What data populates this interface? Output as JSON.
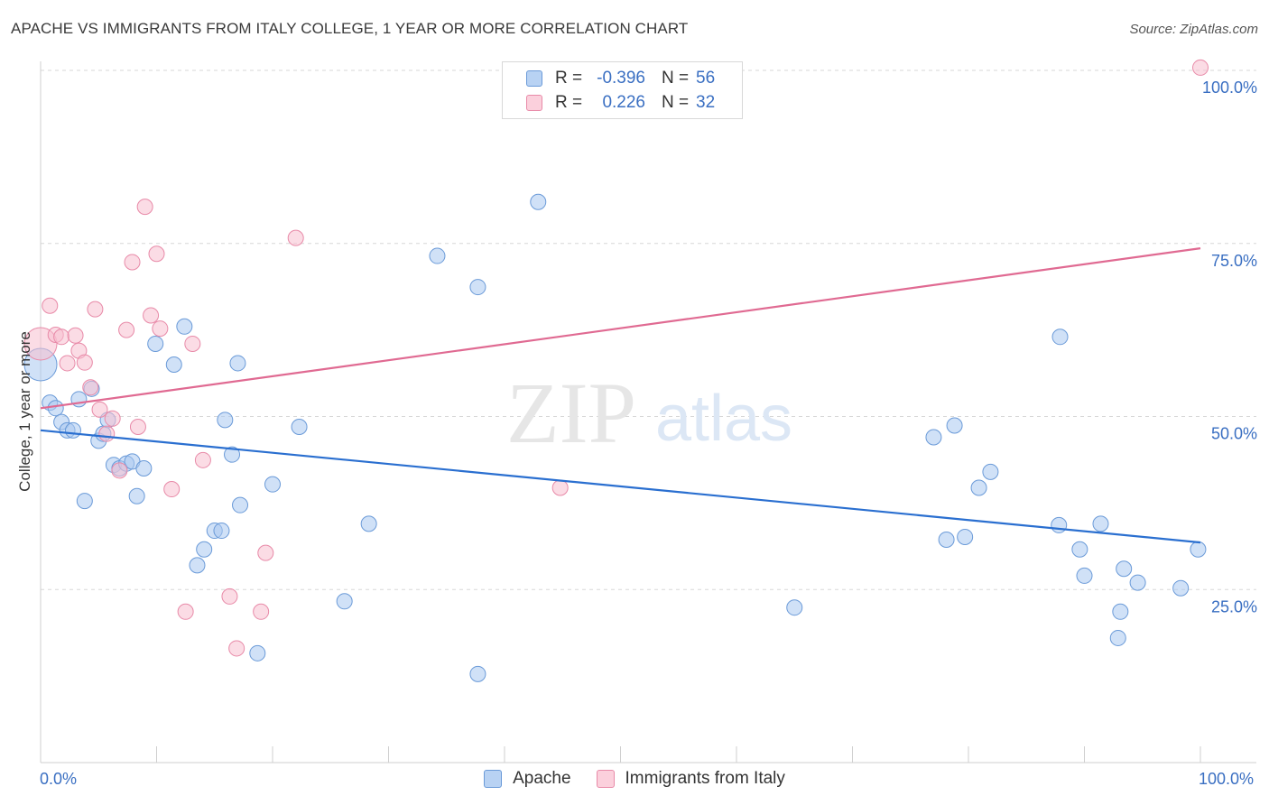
{
  "title": "APACHE VS IMMIGRANTS FROM ITALY COLLEGE, 1 YEAR OR MORE CORRELATION CHART",
  "source": "Source: ZipAtlas.com",
  "watermark": {
    "zip": "ZIP",
    "atlas": "atlas"
  },
  "legend_top": [
    {
      "r_label": "R =",
      "r_value": "-0.396",
      "n_label": "N =",
      "n_value": "56"
    },
    {
      "r_label": "R =",
      "r_value": "0.226",
      "n_label": "N =",
      "n_value": "32"
    }
  ],
  "colors": {
    "apache_fill": "#a9c8f0",
    "apache_stroke": "#6a9ad8",
    "apache_line": "#2a6fd0",
    "italy_fill": "#f7bfd0",
    "italy_stroke": "#e88aa8",
    "italy_line": "#e06a92",
    "axis_text": "#3a6fc2",
    "grid": "#d7d7d7"
  },
  "chart_data": {
    "type": "scatter",
    "title": "APACHE VS IMMIGRANTS FROM ITALY COLLEGE, 1 YEAR OR MORE CORRELATION CHART",
    "xlabel": "",
    "ylabel": "College, 1 year or more",
    "xlim": [
      0,
      100
    ],
    "ylim": [
      0,
      100
    ],
    "x_tick_labels": [
      "0.0%",
      "100.0%"
    ],
    "y_ticks": [
      25,
      50,
      75,
      100
    ],
    "y_tick_labels": [
      "25.0%",
      "50.0%",
      "75.0%",
      "100.0%"
    ],
    "legend": [
      "Apache",
      "Immigrants from Italy"
    ],
    "series": [
      {
        "name": "Apache",
        "r": -0.396,
        "n": 56,
        "trend": {
          "x": [
            0,
            100
          ],
          "y": [
            48.0,
            31.8
          ]
        },
        "points": [
          {
            "x": 0.0,
            "y": 57.5,
            "big": true
          },
          {
            "x": 0.8,
            "y": 52.0
          },
          {
            "x": 1.3,
            "y": 51.2
          },
          {
            "x": 1.8,
            "y": 49.2
          },
          {
            "x": 2.3,
            "y": 48.0
          },
          {
            "x": 2.8,
            "y": 48.0
          },
          {
            "x": 3.3,
            "y": 52.5
          },
          {
            "x": 4.4,
            "y": 54.0
          },
          {
            "x": 3.8,
            "y": 37.8
          },
          {
            "x": 5.0,
            "y": 46.5
          },
          {
            "x": 5.4,
            "y": 47.5
          },
          {
            "x": 5.8,
            "y": 49.5
          },
          {
            "x": 6.3,
            "y": 43.0
          },
          {
            "x": 6.8,
            "y": 42.5
          },
          {
            "x": 7.4,
            "y": 43.2
          },
          {
            "x": 7.9,
            "y": 43.5
          },
          {
            "x": 8.3,
            "y": 38.5
          },
          {
            "x": 8.9,
            "y": 42.5
          },
          {
            "x": 9.9,
            "y": 60.5
          },
          {
            "x": 11.5,
            "y": 57.5
          },
          {
            "x": 12.4,
            "y": 63.0
          },
          {
            "x": 13.5,
            "y": 28.5
          },
          {
            "x": 14.1,
            "y": 30.8
          },
          {
            "x": 15.0,
            "y": 33.5
          },
          {
            "x": 15.6,
            "y": 33.5
          },
          {
            "x": 15.9,
            "y": 49.5
          },
          {
            "x": 16.5,
            "y": 44.5
          },
          {
            "x": 17.0,
            "y": 57.7
          },
          {
            "x": 17.2,
            "y": 37.2
          },
          {
            "x": 18.7,
            "y": 15.8
          },
          {
            "x": 20.0,
            "y": 40.2
          },
          {
            "x": 22.3,
            "y": 48.5
          },
          {
            "x": 26.2,
            "y": 23.3
          },
          {
            "x": 28.3,
            "y": 34.5
          },
          {
            "x": 34.2,
            "y": 73.2
          },
          {
            "x": 37.7,
            "y": 68.7
          },
          {
            "x": 37.7,
            "y": 12.8
          },
          {
            "x": 42.9,
            "y": 81.0
          },
          {
            "x": 65.0,
            "y": 22.4
          },
          {
            "x": 77.0,
            "y": 47.0
          },
          {
            "x": 78.1,
            "y": 32.2
          },
          {
            "x": 78.8,
            "y": 48.7
          },
          {
            "x": 79.7,
            "y": 32.6
          },
          {
            "x": 80.9,
            "y": 39.7
          },
          {
            "x": 81.9,
            "y": 42.0
          },
          {
            "x": 87.9,
            "y": 61.5
          },
          {
            "x": 87.8,
            "y": 34.3
          },
          {
            "x": 89.6,
            "y": 30.8
          },
          {
            "x": 90.0,
            "y": 27.0
          },
          {
            "x": 91.4,
            "y": 34.5
          },
          {
            "x": 92.9,
            "y": 18.0
          },
          {
            "x": 93.1,
            "y": 21.8
          },
          {
            "x": 93.4,
            "y": 28.0
          },
          {
            "x": 94.6,
            "y": 26.0
          },
          {
            "x": 98.3,
            "y": 25.2
          },
          {
            "x": 99.8,
            "y": 30.8
          }
        ]
      },
      {
        "name": "Immigrants from Italy",
        "r": 0.226,
        "n": 32,
        "trend": {
          "x": [
            0,
            100
          ],
          "y": [
            51.2,
            74.3
          ]
        },
        "points": [
          {
            "x": 0.0,
            "y": 60.5,
            "big": true
          },
          {
            "x": 0.8,
            "y": 66.0
          },
          {
            "x": 1.3,
            "y": 61.8
          },
          {
            "x": 1.8,
            "y": 61.5
          },
          {
            "x": 2.3,
            "y": 57.7
          },
          {
            "x": 3.0,
            "y": 61.7
          },
          {
            "x": 3.3,
            "y": 59.5
          },
          {
            "x": 3.8,
            "y": 57.8
          },
          {
            "x": 4.3,
            "y": 54.2
          },
          {
            "x": 4.7,
            "y": 65.5
          },
          {
            "x": 5.1,
            "y": 51.0
          },
          {
            "x": 5.7,
            "y": 47.5
          },
          {
            "x": 6.2,
            "y": 49.7
          },
          {
            "x": 6.8,
            "y": 42.2
          },
          {
            "x": 7.4,
            "y": 62.5
          },
          {
            "x": 7.9,
            "y": 72.3
          },
          {
            "x": 8.4,
            "y": 48.5
          },
          {
            "x": 9.0,
            "y": 80.3
          },
          {
            "x": 9.5,
            "y": 64.6
          },
          {
            "x": 10.0,
            "y": 73.5
          },
          {
            "x": 10.3,
            "y": 62.7
          },
          {
            "x": 11.3,
            "y": 39.5
          },
          {
            "x": 12.5,
            "y": 21.8
          },
          {
            "x": 13.1,
            "y": 60.5
          },
          {
            "x": 14.0,
            "y": 43.7
          },
          {
            "x": 16.3,
            "y": 24.0
          },
          {
            "x": 16.9,
            "y": 16.5
          },
          {
            "x": 19.0,
            "y": 21.8
          },
          {
            "x": 19.4,
            "y": 30.3
          },
          {
            "x": 22.0,
            "y": 75.8
          },
          {
            "x": 44.8,
            "y": 39.7
          },
          {
            "x": 100.0,
            "y": 100.4
          }
        ]
      }
    ]
  }
}
